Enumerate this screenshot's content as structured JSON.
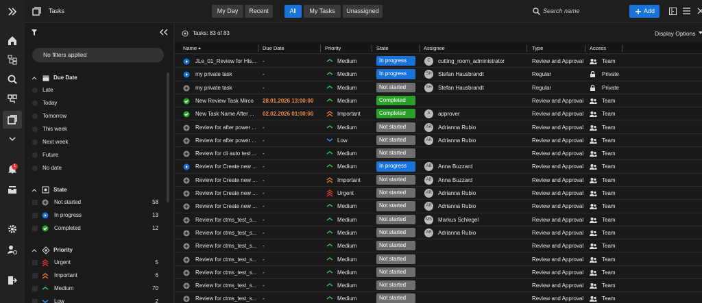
{
  "sidebar": {
    "notification_badge": "1"
  },
  "header": {
    "title": "Tasks",
    "view_buttons": [
      "My Day",
      "Recent"
    ],
    "scope_buttons": [
      "All",
      "My Tasks",
      "Unassigned"
    ],
    "active_scope": 0,
    "search_placeholder": "Search name",
    "add_button": "Add"
  },
  "filters": {
    "summary": "No filters applied",
    "sections": [
      {
        "title": "Due Date",
        "options": [
          {
            "label": "Late"
          },
          {
            "label": "Today"
          },
          {
            "label": "Tomorrow"
          },
          {
            "label": "This week"
          },
          {
            "label": "Next week"
          },
          {
            "label": "Future"
          },
          {
            "label": "No date"
          }
        ]
      },
      {
        "title": "State",
        "options": [
          {
            "label": "Not started",
            "count": 58
          },
          {
            "label": "In progress",
            "count": 13
          },
          {
            "label": "Completed",
            "count": 12
          }
        ]
      },
      {
        "title": "Priority",
        "options": [
          {
            "label": "Urgent",
            "count": 5
          },
          {
            "label": "Important",
            "count": 6
          },
          {
            "label": "Medium",
            "count": 70
          },
          {
            "label": "Low",
            "count": 2
          }
        ]
      }
    ]
  },
  "toolbar": {
    "count_text": "Tasks: 83 of 83",
    "display_options": "Display Options"
  },
  "table": {
    "columns": [
      "Name",
      "Due Date",
      "Priority",
      "State",
      "Assignee",
      "Type",
      "Access"
    ],
    "rows": [
      {
        "name": "JLe_01_Review for His...",
        "due": "-",
        "priority": "Medium",
        "state": "In progress",
        "initials": "C",
        "assignee": "cutting_room_administrator",
        "type": "Review and Approval",
        "access": "Team"
      },
      {
        "name": "my private task",
        "due": "-",
        "priority": "Medium",
        "state": "In progress",
        "initials": "SH",
        "assignee": "Stefan Hausbrandt",
        "type": "Regular",
        "access": "Private"
      },
      {
        "name": "my private task",
        "due": "-",
        "priority": "Medium",
        "state": "Not started",
        "initials": "SH",
        "assignee": "Stefan Hausbrandt",
        "type": "Regular",
        "access": "Private"
      },
      {
        "name": "New Review Task Mirco",
        "due": "28.01.2026 13:00:00",
        "priority": "Medium",
        "state": "Completed",
        "type": "Review and Approval",
        "access": "Team"
      },
      {
        "name": "New Task Name After ...",
        "due": "02.02.2026 01:00:00",
        "priority": "Important",
        "state": "Completed",
        "initials": "A",
        "assignee": "approver",
        "type": "Review and Approval",
        "access": "Team"
      },
      {
        "name": "Review for after power ...",
        "due": "-",
        "priority": "Medium",
        "state": "Not started",
        "initials": "AR",
        "assignee": "Adrianna Rubio",
        "type": "Review and Approval",
        "access": "Team"
      },
      {
        "name": "Review for after power ...",
        "due": "-",
        "priority": "Low",
        "state": "Not started",
        "initials": "AR",
        "assignee": "Adrianna Rubio",
        "type": "Review and Approval",
        "access": "Team"
      },
      {
        "name": "Review for cli auto test ...",
        "due": "-",
        "priority": "Medium",
        "state": "Not started",
        "type": "Review and Approval",
        "access": "Team"
      },
      {
        "name": "Review for Create new ...",
        "due": "-",
        "priority": "Medium",
        "state": "In progress",
        "initials": "AB",
        "assignee": "Anna Buzzard",
        "type": "Review and Approval",
        "access": "Team"
      },
      {
        "name": "Review for Create new ...",
        "due": "-",
        "priority": "Important",
        "state": "Not started",
        "initials": "AB",
        "assignee": "Anna Buzzard",
        "type": "Review and Approval",
        "access": "Team"
      },
      {
        "name": "Review for Create new ...",
        "due": "-",
        "priority": "Urgent",
        "state": "Not started",
        "initials": "AR",
        "assignee": "Adrianna Rubio",
        "type": "Review and Approval",
        "access": "Team"
      },
      {
        "name": "Review for Create new ...",
        "due": "-",
        "priority": "Medium",
        "state": "Not started",
        "initials": "AR",
        "assignee": "Adrianna Rubio",
        "type": "Review and Approval",
        "access": "Team"
      },
      {
        "name": "Review for ctms_test_s...",
        "due": "-",
        "priority": "Medium",
        "state": "Not started",
        "initials": "MS",
        "assignee": "Markus Schlegel",
        "type": "Review and Approval",
        "access": "Team"
      },
      {
        "name": "Review for ctms_test_s...",
        "due": "-",
        "priority": "Medium",
        "state": "Not started",
        "initials": "AR",
        "assignee": "Adrianna Rubio",
        "type": "Review and Approval",
        "access": "Team"
      },
      {
        "name": "Review for ctms_test_s...",
        "due": "-",
        "priority": "Medium",
        "state": "Not started",
        "type": "Review and Approval",
        "access": "Team"
      },
      {
        "name": "Review for ctms_test_s...",
        "due": "-",
        "priority": "Medium",
        "state": "Not started",
        "type": "Review and Approval",
        "access": "Team"
      },
      {
        "name": "Review for ctms_test_s...",
        "due": "-",
        "priority": "Medium",
        "state": "Not started",
        "type": "Review and Approval",
        "access": "Team"
      },
      {
        "name": "Review for ctms_test_s...",
        "due": "-",
        "priority": "Medium",
        "state": "Not started",
        "type": "Review and Approval",
        "access": "Team"
      },
      {
        "name": "Review for ctms_test_s...",
        "due": "-",
        "priority": "Medium",
        "state": "Not started",
        "type": "Review and Approval",
        "access": "Team"
      }
    ]
  }
}
